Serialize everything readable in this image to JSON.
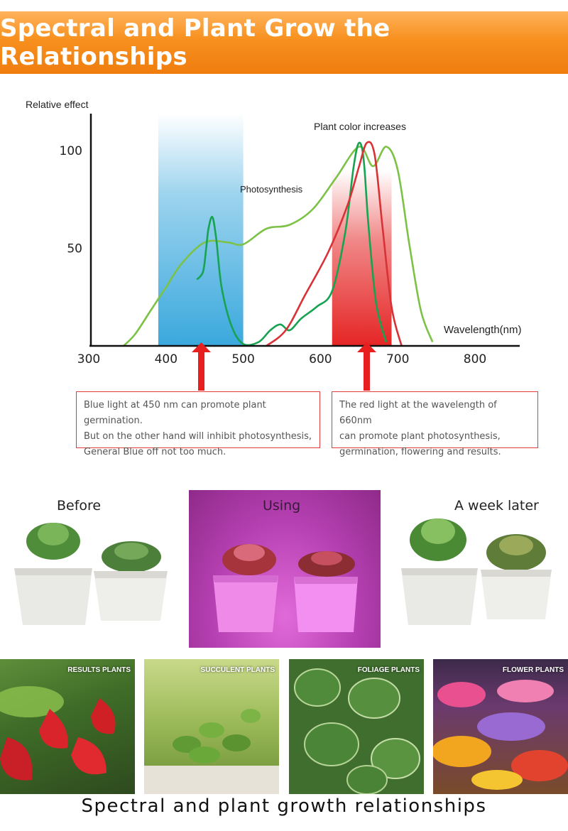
{
  "banner_title": "Spectral and Plant Grow the Relationships",
  "chart_data": {
    "type": "line",
    "ylabel": "Relative effect",
    "xlabel": "Wavelength(nm)",
    "xlim": [
      300,
      850
    ],
    "ylim": [
      0,
      115
    ],
    "x_ticks": [
      300,
      400,
      500,
      600,
      700,
      800
    ],
    "y_ticks": [
      50,
      100
    ],
    "bands": [
      {
        "name": "blue",
        "from": 390,
        "to": 500,
        "color": "#3aa8dd"
      },
      {
        "name": "red",
        "from": 615,
        "to": 692,
        "color": "#e52525"
      }
    ],
    "annotations": [
      "Photosynthesis",
      "Plant color increases"
    ],
    "series": [
      {
        "color": "#7cc246",
        "points": [
          [
            345,
            0
          ],
          [
            360,
            6
          ],
          [
            380,
            18
          ],
          [
            400,
            30
          ],
          [
            420,
            42
          ],
          [
            450,
            53
          ],
          [
            480,
            53
          ],
          [
            500,
            52
          ],
          [
            530,
            60
          ],
          [
            560,
            62
          ],
          [
            590,
            70
          ],
          [
            620,
            86
          ],
          [
            650,
            102
          ],
          [
            668,
            92
          ],
          [
            685,
            102
          ],
          [
            700,
            90
          ],
          [
            715,
            52
          ],
          [
            730,
            18
          ],
          [
            745,
            2
          ]
        ]
      },
      {
        "color": "#17a352",
        "points": [
          [
            440,
            34
          ],
          [
            448,
            38
          ],
          [
            452,
            50
          ],
          [
            455,
            60
          ],
          [
            460,
            66
          ],
          [
            465,
            55
          ],
          [
            472,
            30
          ],
          [
            485,
            10
          ],
          [
            500,
            1
          ],
          [
            520,
            2
          ],
          [
            535,
            8
          ],
          [
            548,
            11
          ],
          [
            560,
            8
          ],
          [
            575,
            14
          ],
          [
            595,
            20
          ],
          [
            615,
            28
          ],
          [
            632,
            58
          ],
          [
            643,
            92
          ],
          [
            650,
            104
          ],
          [
            656,
            95
          ],
          [
            662,
            62
          ],
          [
            672,
            22
          ],
          [
            685,
            2
          ]
        ]
      },
      {
        "color": "#d83236",
        "points": [
          [
            530,
            0
          ],
          [
            555,
            8
          ],
          [
            580,
            26
          ],
          [
            610,
            48
          ],
          [
            635,
            72
          ],
          [
            650,
            92
          ],
          [
            660,
            104
          ],
          [
            670,
            98
          ],
          [
            680,
            62
          ],
          [
            692,
            20
          ],
          [
            705,
            0
          ]
        ]
      }
    ]
  },
  "notes": {
    "blue": [
      "Blue light at 450 nm can promote plant germination.",
      "But on the other hand will inhibit photosynthesis,",
      "General Blue off not too much."
    ],
    "red": [
      "The red light at the wavelength of 660nm",
      "can promote plant photosynthesis,",
      "germination, flowering and results."
    ]
  },
  "stages": {
    "before": "Before",
    "using": "Using",
    "later": "A week later"
  },
  "categories": [
    "RESULTS PLANTS",
    "SUCCULENT PLANTS",
    "FOLIAGE PLANTS",
    "FLOWER PLANTS"
  ],
  "footer": "Spectral and plant growth relationships",
  "colors": {
    "banner": "#f7901e",
    "note_border": "#e23b3b",
    "arrow": "#e81f1f",
    "grow_light": "#c94fc3"
  }
}
